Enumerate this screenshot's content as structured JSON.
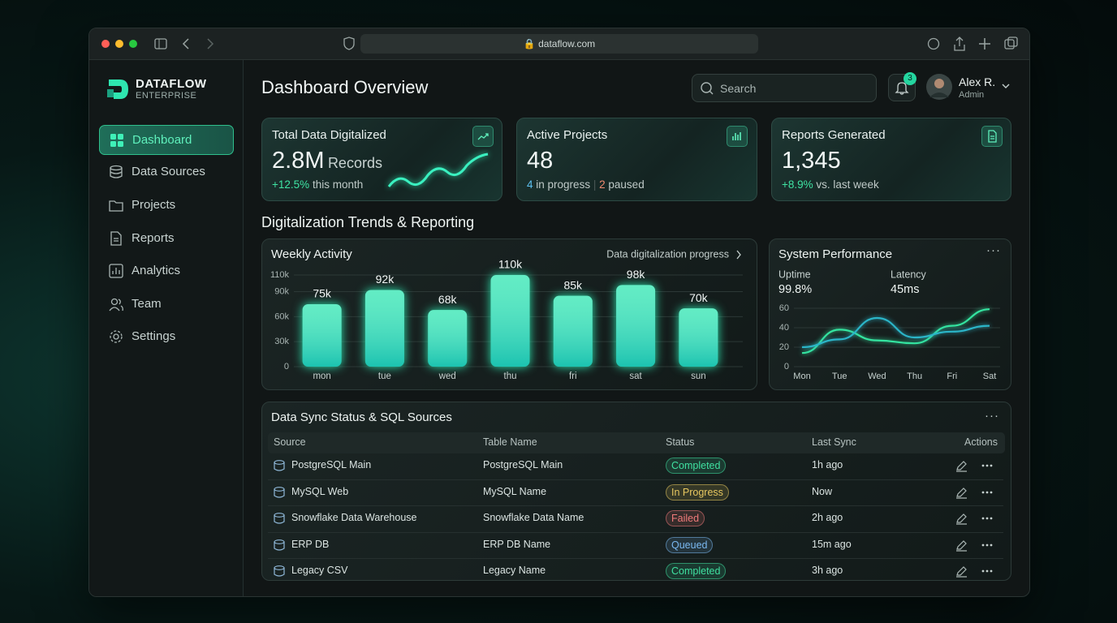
{
  "browser": {
    "url": "dataflow.com"
  },
  "sidebar": {
    "brand": "DATAFLOW",
    "subtitle": "ENTERPRISE",
    "nav": [
      "Dashboard",
      "Data Sources",
      "Projects",
      "Reports",
      "Analytics",
      "Team",
      "Settings"
    ]
  },
  "header": {
    "title": "Dashboard Overview",
    "search_placeholder": "Search",
    "notifications": 3,
    "user": "Alex R.",
    "role": "Admin"
  },
  "cards": [
    {
      "title": "Total Data Digitalized",
      "value": "2.8M",
      "unit": "Records",
      "change": "+12.5%",
      "change_text": "this month"
    },
    {
      "title": "Active Projects",
      "value": "48",
      "in_progress": "4",
      "in_progress_text": "in progress",
      "paused": "2",
      "paused_text": "paused"
    },
    {
      "title": "Reports Generated",
      "value": "1,345",
      "change": "+8.9%",
      "change_text": "vs. last week"
    }
  ],
  "section_title": "Digitalization Trends & Reporting",
  "chart_data": [
    {
      "type": "bar",
      "title": "Weekly Activity",
      "subtitle": "Data digitalization progress",
      "categories": [
        "mon",
        "tue",
        "wed",
        "thu",
        "fri",
        "sat",
        "sun"
      ],
      "values": [
        75000,
        92000,
        68000,
        110000,
        85000,
        98000,
        70000
      ],
      "value_labels": [
        "75k",
        "92k",
        "68k",
        "110k",
        "85k",
        "98k",
        "70k"
      ],
      "ylim": [
        0,
        110000
      ],
      "yticks": [
        0,
        {
          "value": 30000,
          "label": "30k"
        },
        {
          "value": 60000,
          "label": "60k"
        },
        {
          "value": 90000,
          "label": "90k"
        },
        {
          "value": 110000,
          "label": "110k"
        }
      ],
      "grid": true,
      "color": "#2ee6b0"
    },
    {
      "type": "line",
      "title": "System Performance",
      "stats": [
        {
          "label": "Uptime",
          "value": "99.8%"
        },
        {
          "label": "Latency",
          "value": "45ms"
        }
      ],
      "categories": [
        "Mon",
        "Tue",
        "Wed",
        "Thu",
        "Fri",
        "Sat"
      ],
      "series": [
        {
          "color": "#34e4a0",
          "values": [
            14,
            38,
            27,
            24,
            42,
            59
          ]
        },
        {
          "color": "#2bb5c8",
          "values": [
            20,
            28,
            50,
            30,
            36,
            42
          ]
        }
      ],
      "ylim": [
        0,
        60
      ],
      "yticks": [
        0,
        20,
        40,
        60
      ],
      "grid": true
    }
  ],
  "table": {
    "title": "Data Sync Status & SQL Sources",
    "columns": [
      "Source",
      "Table Name",
      "Status",
      "Last Sync",
      "Actions"
    ],
    "rows": [
      {
        "source": "PostgreSQL Main",
        "table_name": "PostgreSQL Main",
        "status": "Completed",
        "color": "#3fe0a0",
        "last_sync": "1h ago"
      },
      {
        "source": "MySQL Web",
        "table_name": "MySQL Name",
        "status": "In Progress",
        "color": "#e8c860",
        "last_sync": "Now"
      },
      {
        "source": "Snowflake Data Warehouse",
        "table_name": "Snowflake Data Name",
        "status": "Failed",
        "color": "#f07a7a",
        "last_sync": "2h ago"
      },
      {
        "source": "ERP DB",
        "table_name": "ERP DB Name",
        "status": "Queued",
        "color": "#7ab8f0",
        "last_sync": "15m ago"
      },
      {
        "source": "Legacy CSV",
        "table_name": "Legacy Name",
        "status": "Completed",
        "color": "#3fe0a0",
        "last_sync": "3h ago"
      }
    ]
  }
}
